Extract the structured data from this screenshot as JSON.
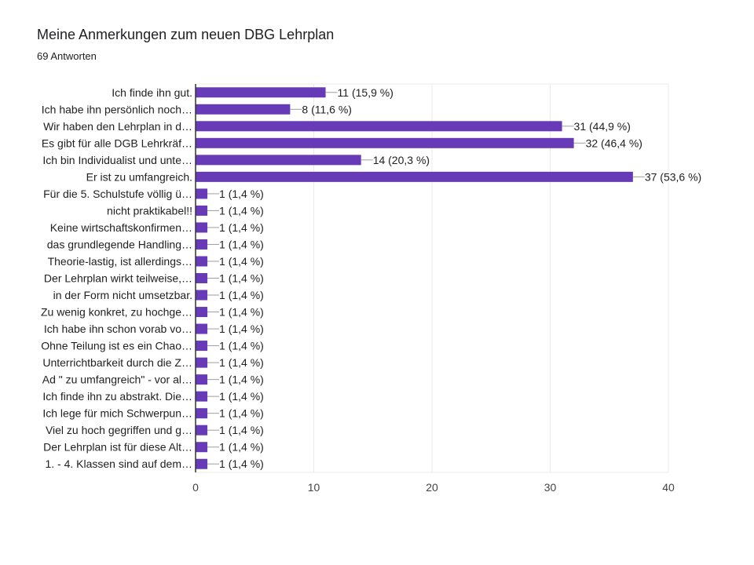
{
  "header": {
    "title": "Meine Anmerkungen zum neuen DBG Lehrplan",
    "subtitle": "69 Antworten"
  },
  "colors": {
    "bar": "#673ab7",
    "grid": "#ebebeb",
    "axis": "#333333",
    "text": "#212121"
  },
  "chart_data": {
    "type": "bar",
    "orientation": "horizontal",
    "title": "Meine Anmerkungen zum neuen DBG Lehrplan",
    "subtitle": "69 Antworten",
    "categories": [
      "Ich finde ihn gut.",
      "Ich habe ihn persönlich noch…",
      "Wir haben den Lehrplan in d…",
      "Es gibt für alle DGB Lehrkräf…",
      "Ich bin Individualist und unte…",
      "Er ist zu umfangreich.",
      "Für die 5. Schulstufe völlig ü…",
      "nicht praktikabel!!",
      "Keine wirtschaftskonfirmen…",
      "das grundlegende Handling…",
      "Theorie-lastig, ist allerdings…",
      "Der Lehrplan wirkt teilweise,…",
      "in der Form nicht umsetzbar.",
      "Zu wenig konkret, zu hochge…",
      "Ich habe ihn schon vorab vo…",
      "Ohne Teilung ist es ein Chao…",
      "Unterrichtbarkeit durch die Z…",
      "Ad \" zu umfangreich\" - vor al…",
      "Ich finde ihn zu abstrakt. Die…",
      "Ich lege für mich Schwerpun…",
      "Viel zu hoch gegriffen und g…",
      "Der Lehrplan ist für diese Alt…",
      "1. - 4. Klassen sind auf dem…"
    ],
    "values": [
      11,
      8,
      31,
      32,
      14,
      37,
      1,
      1,
      1,
      1,
      1,
      1,
      1,
      1,
      1,
      1,
      1,
      1,
      1,
      1,
      1,
      1,
      1
    ],
    "data_labels": [
      "11 (15,9 %)",
      "8 (11,6 %)",
      "31 (44,9 %)",
      "32 (46,4 %)",
      "14 (20,3 %)",
      "37 (53,6 %)",
      "1 (1,4 %)",
      "1 (1,4 %)",
      "1 (1,4 %)",
      "1 (1,4 %)",
      "1 (1,4 %)",
      "1 (1,4 %)",
      "1 (1,4 %)",
      "1 (1,4 %)",
      "1 (1,4 %)",
      "1 (1,4 %)",
      "1 (1,4 %)",
      "1 (1,4 %)",
      "1 (1,4 %)",
      "1 (1,4 %)",
      "1 (1,4 %)",
      "1 (1,4 %)",
      "1 (1,4 %)"
    ],
    "xlim": [
      0,
      40
    ],
    "xticks": [
      0,
      10,
      20,
      30,
      40
    ],
    "xlabel": "",
    "ylabel": "",
    "grid": true,
    "legend": "none"
  }
}
